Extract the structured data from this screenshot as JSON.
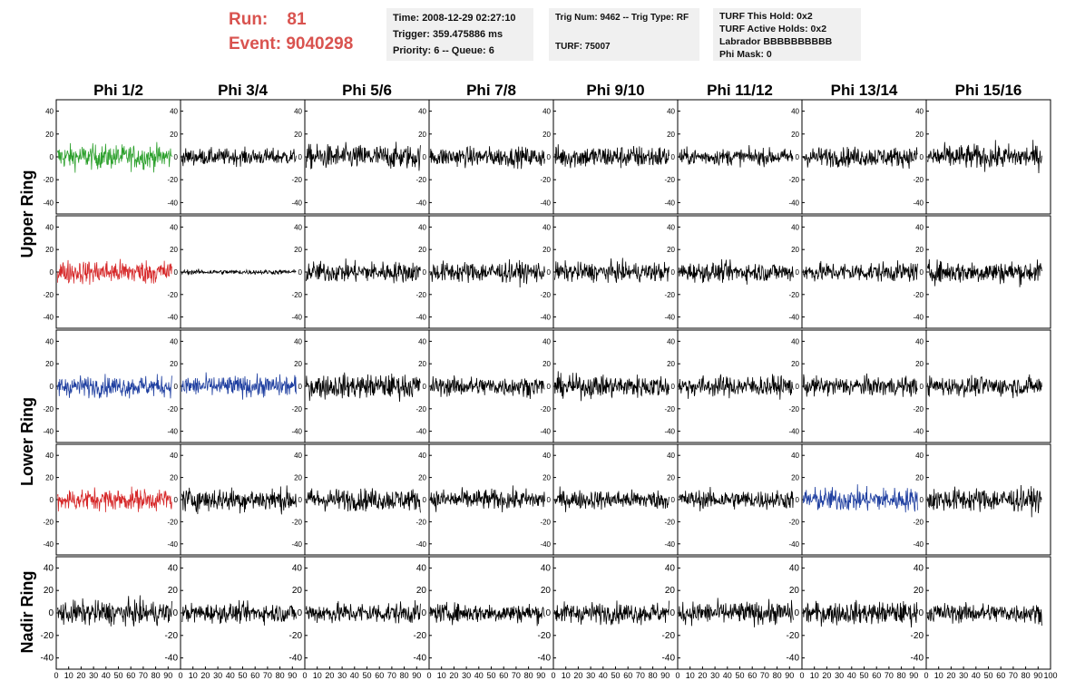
{
  "header": {
    "run_label": "Run:    81",
    "event_label": "Event: 9040298"
  },
  "info": {
    "time": "Time: 2008-12-29 02:27:10",
    "trigger": "Trigger: 359.475886 ms",
    "priority": "Priority: 6 -- Queue: 6",
    "trig_num": "Trig Num: 9462 -- Trig Type: RF",
    "turf": "TURF: 75007",
    "turf_this_hold": "TURF This Hold: 0x2",
    "turf_active_holds": "TURF Active Holds: 0x2",
    "labrador": "Labrador BBBBBBBBBB",
    "phi_mask": "Phi Mask: 0"
  },
  "chart_data": {
    "type": "line",
    "columns": [
      "Phi 1/2",
      "Phi 3/4",
      "Phi 5/6",
      "Phi 7/8",
      "Phi 9/10",
      "Phi 11/12",
      "Phi 13/14",
      "Phi 15/16"
    ],
    "rows": [
      "Upper Ring",
      "Lower Ring",
      "Nadir Ring"
    ],
    "ring_panels": [
      {
        "ring": "Upper Ring",
        "panels": 2
      },
      {
        "ring": "Lower Ring",
        "panels": 2
      },
      {
        "ring": "Nadir Ring",
        "panels": 1
      }
    ],
    "xlim": [
      0,
      100
    ],
    "ylim": [
      -50,
      50
    ],
    "ytick_values": [
      -40,
      -20,
      0,
      20,
      40
    ],
    "xtick_labels": [
      "0",
      "10",
      "20",
      "30",
      "40",
      "50",
      "60",
      "70",
      "80",
      "90",
      "100"
    ],
    "ytick_labels": [
      "-40",
      "-20",
      "0",
      "20",
      "40"
    ],
    "samples_per_trace": 260,
    "trace_span": [
      1,
      93
    ],
    "colors": {
      "default": "#000000",
      "green": "#2ca02c",
      "red": "#d62728",
      "blue": "#1f3fa0",
      "panel_border": "#000000"
    },
    "traces": [
      [
        {
          "amp": 15,
          "color": "green"
        },
        {
          "amp": 10,
          "color": "default"
        },
        {
          "amp": 15,
          "color": "default"
        },
        {
          "amp": 12,
          "color": "default"
        },
        {
          "amp": 14,
          "color": "default"
        },
        {
          "amp": 10,
          "color": "default"
        },
        {
          "amp": 12,
          "color": "default"
        },
        {
          "amp": 15,
          "color": "default"
        }
      ],
      [
        {
          "amp": 15,
          "color": "red"
        },
        {
          "amp": 3,
          "color": "default"
        },
        {
          "amp": 13,
          "color": "default"
        },
        {
          "amp": 13,
          "color": "default"
        },
        {
          "amp": 12,
          "color": "default"
        },
        {
          "amp": 12,
          "color": "default"
        },
        {
          "amp": 12,
          "color": "default"
        },
        {
          "amp": 14,
          "color": "default"
        }
      ],
      [
        {
          "amp": 13,
          "color": "blue"
        },
        {
          "amp": 13,
          "color": "blue"
        },
        {
          "amp": 15,
          "color": "default"
        },
        {
          "amp": 12,
          "color": "default"
        },
        {
          "amp": 14,
          "color": "default"
        },
        {
          "amp": 13,
          "color": "default"
        },
        {
          "amp": 12,
          "color": "default"
        },
        {
          "amp": 12,
          "color": "default"
        }
      ],
      [
        {
          "amp": 14,
          "color": "red"
        },
        {
          "amp": 15,
          "color": "default"
        },
        {
          "amp": 14,
          "color": "default"
        },
        {
          "amp": 13,
          "color": "default"
        },
        {
          "amp": 12,
          "color": "default"
        },
        {
          "amp": 12,
          "color": "default"
        },
        {
          "amp": 15,
          "color": "blue"
        },
        {
          "amp": 15,
          "color": "default"
        }
      ],
      [
        {
          "amp": 15,
          "color": "default"
        },
        {
          "amp": 12,
          "color": "default"
        },
        {
          "amp": 13,
          "color": "default"
        },
        {
          "amp": 12,
          "color": "default"
        },
        {
          "amp": 13,
          "color": "default"
        },
        {
          "amp": 14,
          "color": "default"
        },
        {
          "amp": 14,
          "color": "default"
        },
        {
          "amp": 12,
          "color": "default"
        }
      ]
    ]
  }
}
